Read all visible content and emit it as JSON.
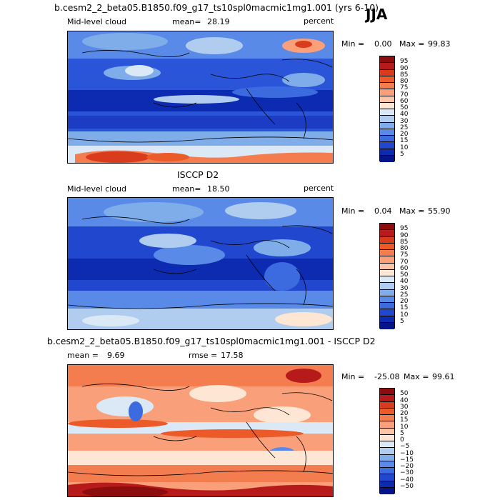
{
  "season": "JJA",
  "panels": [
    {
      "title": "b.cesm2_2_beta05.B1850.f09_g17_ts10spl0macmic1mg1.001 (yrs 6-10)",
      "variable": "Mid-level cloud",
      "mean_label": "mean=",
      "mean_value": "28.19",
      "units": "percent",
      "min_label": "Min =",
      "min_value": "0.00",
      "max_label": "Max =",
      "max_value": "99.83",
      "colorbar_labels": [
        "95",
        "90",
        "85",
        "80",
        "75",
        "70",
        "60",
        "50",
        "40",
        "30",
        "25",
        "20",
        "15",
        "10",
        "5"
      ],
      "colorbar_colors": [
        "#8b0d0d",
        "#b71a1a",
        "#d93b1d",
        "#ec5a2a",
        "#f47d4f",
        "#f9a07a",
        "#fcc5a8",
        "#fde6d4",
        "#dbe9f6",
        "#b0cdf0",
        "#7fadea",
        "#5a8ae8",
        "#3c6be0",
        "#2147cf",
        "#0d2bb0",
        "#06148a"
      ],
      "map_style": "model"
    },
    {
      "title": "ISCCP D2",
      "variable": "Mid-level cloud",
      "mean_label": "mean=",
      "mean_value": "18.50",
      "units": "percent",
      "min_label": "Min =",
      "min_value": "0.04",
      "max_label": "Max =",
      "max_value": "55.90",
      "colorbar_labels": [
        "95",
        "90",
        "85",
        "80",
        "75",
        "70",
        "60",
        "50",
        "40",
        "30",
        "25",
        "20",
        "15",
        "10",
        "5"
      ],
      "colorbar_colors": [
        "#8b0d0d",
        "#b71a1a",
        "#d93b1d",
        "#ec5a2a",
        "#f47d4f",
        "#f9a07a",
        "#fcc5a8",
        "#fde6d4",
        "#dbe9f6",
        "#b0cdf0",
        "#7fadea",
        "#5a8ae8",
        "#3c6be0",
        "#2147cf",
        "#0d2bb0",
        "#06148a"
      ],
      "map_style": "obs"
    },
    {
      "title": "b.cesm2_2_beta05.B1850.f09_g17_ts10spl0macmic1mg1.001 - ISCCP D2",
      "mean_label": "mean =",
      "mean_value": "9.69",
      "rmse_label": "rmse =",
      "rmse_value": "17.58",
      "min_label": "Min =",
      "min_value": "-25.08",
      "max_label": "Max =",
      "max_value": "99.61",
      "colorbar_labels": [
        "50",
        "40",
        "30",
        "20",
        "15",
        "10",
        "5",
        "0",
        "−5",
        "−10",
        "−15",
        "−20",
        "−30",
        "−40",
        "−50"
      ],
      "colorbar_colors": [
        "#8b0d0d",
        "#b71a1a",
        "#d93b1d",
        "#ec5a2a",
        "#f47d4f",
        "#f9a07a",
        "#fcc5a8",
        "#fde6d4",
        "#dbe9f6",
        "#b0cdf0",
        "#7fadea",
        "#5a8ae8",
        "#3c6be0",
        "#2147cf",
        "#0d2bb0",
        "#06148a"
      ],
      "map_style": "diff"
    }
  ]
}
